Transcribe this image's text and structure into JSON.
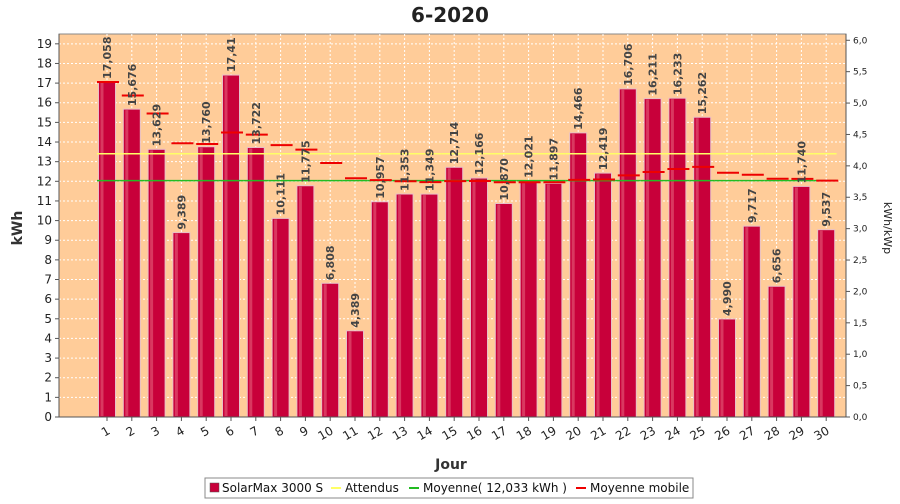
{
  "chart_data": {
    "type": "bar",
    "title": "6-2020",
    "xlabel": "Jour",
    "ylabel": "kWh",
    "y2label": "kWh/kWp",
    "ylim": [
      0,
      19.5
    ],
    "y2lim": [
      0,
      6.1
    ],
    "y_ticks": [
      0,
      1,
      2,
      3,
      4,
      5,
      6,
      7,
      8,
      9,
      10,
      11,
      12,
      13,
      14,
      15,
      16,
      17,
      18,
      19
    ],
    "y2_ticks": [
      "0,0",
      "0,5",
      "1,0",
      "1,5",
      "2,0",
      "2,5",
      "3,0",
      "3,5",
      "4,0",
      "4,5",
      "5,0",
      "5,5",
      "6,0"
    ],
    "y2_tick_values": [
      0,
      0.5,
      1,
      1.5,
      2,
      2.5,
      3,
      3.5,
      4,
      4.5,
      5,
      5.5,
      6
    ],
    "categories": [
      "1",
      "2",
      "3",
      "4",
      "5",
      "6",
      "7",
      "8",
      "9",
      "10",
      "11",
      "12",
      "13",
      "14",
      "15",
      "16",
      "17",
      "18",
      "19",
      "20",
      "21",
      "22",
      "23",
      "24",
      "25",
      "26",
      "27",
      "28",
      "29",
      "30"
    ],
    "series": [
      {
        "name": "SolarMax 3000 S",
        "kind": "bar",
        "color": "#c8003a",
        "values": [
          17.058,
          15.676,
          13.629,
          9.389,
          13.76,
          17.41,
          13.722,
          10.111,
          11.775,
          6.808,
          4.389,
          10.957,
          11.353,
          11.349,
          12.714,
          12.166,
          10.87,
          12.021,
          11.897,
          14.466,
          12.419,
          16.706,
          16.211,
          16.233,
          15.262,
          4.99,
          9.717,
          6.656,
          11.74,
          9.537
        ],
        "labels": [
          "17,058",
          "15,676",
          "13,629",
          "9,389",
          "13,760",
          "17,41",
          "13,722",
          "10,111",
          "11,775",
          "6,808",
          "4,389",
          "10,957",
          "11,353",
          "11,349",
          "12,714",
          "12,166",
          "10,870",
          "12,021",
          "11,897",
          "14,466",
          "12,419",
          "16,706",
          "16,211",
          "16,233",
          "15,262",
          "4,990",
          "9,717",
          "6,656",
          "11,740",
          "9,537"
        ]
      },
      {
        "name": "Attendus",
        "kind": "step",
        "color": "#ffff66",
        "values": [
          13.4,
          13.4,
          13.4,
          13.4,
          13.4,
          13.4,
          13.4,
          13.4,
          13.4,
          13.4,
          13.4,
          13.4,
          13.4,
          13.4,
          13.4,
          13.4,
          13.4,
          13.4,
          13.4,
          13.4,
          13.4,
          13.4,
          13.4,
          13.4,
          13.4,
          13.4,
          13.4,
          13.4,
          13.4,
          13.4
        ]
      },
      {
        "name": "Moyenne( 12,033 kWh )",
        "kind": "step",
        "color": "#22bb22",
        "values": [
          12.033,
          12.033,
          12.033,
          12.033,
          12.033,
          12.033,
          12.033,
          12.033,
          12.033,
          12.033,
          12.033,
          12.033,
          12.033,
          12.033,
          12.033,
          12.033,
          12.033,
          12.033,
          12.033,
          12.033,
          12.033,
          12.033,
          12.033,
          12.033,
          12.033,
          12.033,
          12.033,
          12.033,
          12.033,
          12.033
        ]
      },
      {
        "name": "Moyenne mobile",
        "kind": "step",
        "color": "#ee0000",
        "values": [
          17.058,
          16.367,
          15.454,
          13.938,
          13.902,
          14.487,
          14.378,
          13.845,
          13.615,
          12.935,
          12.158,
          12.058,
          12.004,
          11.957,
          12.008,
          12.018,
          11.95,
          11.954,
          11.95,
          12.076,
          12.091,
          12.301,
          12.471,
          12.628,
          12.735,
          12.437,
          12.336,
          12.133,
          12.121,
          12.033
        ]
      }
    ],
    "legend_position": "bottom",
    "grid": true,
    "plot_background": "#ffcc99"
  }
}
